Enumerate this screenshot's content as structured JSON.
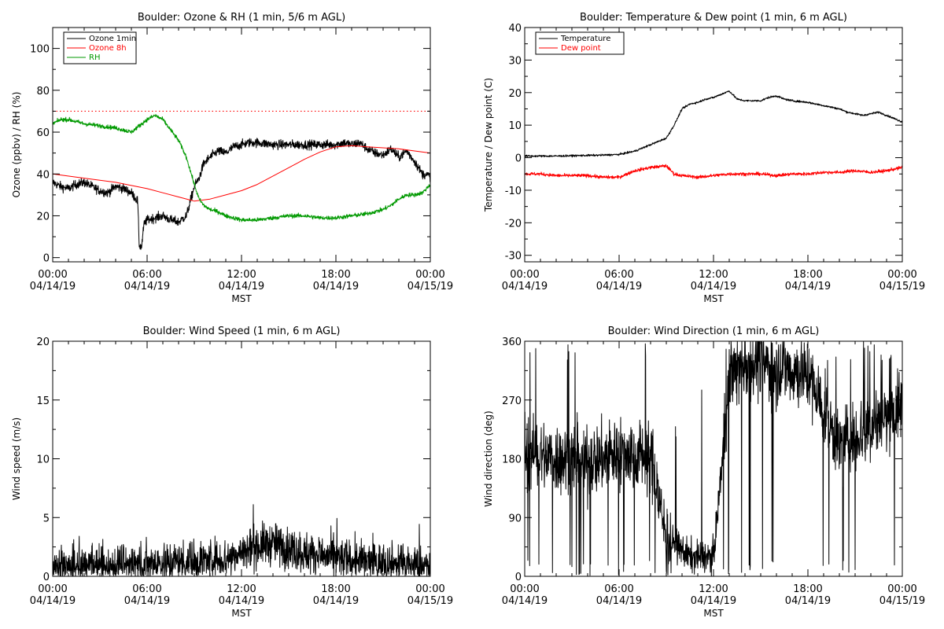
{
  "chart_data": [
    {
      "type": "line",
      "title": "Boulder: Ozone & RH (1 min, 5/6 m AGL)",
      "xlabel": "MST",
      "ylabel": "Ozone (ppbv) / RH (%)",
      "xlim_hours": [
        0,
        24
      ],
      "ylim": [
        -2,
        110
      ],
      "x_ticks": [
        {
          "time": "00:00",
          "date": "04/14/19",
          "hour": 0
        },
        {
          "time": "06:00",
          "date": "04/14/19",
          "hour": 6
        },
        {
          "time": "12:00",
          "date": "04/14/19",
          "hour": 12
        },
        {
          "time": "18:00",
          "date": "04/14/19",
          "hour": 18
        },
        {
          "time": "00:00",
          "date": "04/15/19",
          "hour": 24
        }
      ],
      "y_ticks": [
        0,
        20,
        40,
        60,
        80,
        100
      ],
      "legend": "top-left",
      "series": [
        {
          "name": "Ozone 1min",
          "color": "#000000",
          "noise": 2.2,
          "x": [
            0,
            0.5,
            1,
            1.5,
            2,
            2.5,
            3,
            3.5,
            4,
            4.5,
            5,
            5.4,
            5.5,
            5.65,
            5.8,
            6,
            6.5,
            7,
            7.5,
            8,
            8.5,
            9,
            9.3,
            9.6,
            10,
            10.5,
            11,
            11.5,
            12,
            12.5,
            13,
            14,
            15,
            16,
            17,
            18,
            18.5,
            19,
            19.5,
            20,
            20.5,
            21,
            21.5,
            22,
            22.5,
            23,
            23.5,
            24
          ],
          "y": [
            36,
            34,
            33,
            35,
            36,
            34,
            32,
            31,
            34,
            33,
            31,
            27,
            6,
            5,
            16,
            18,
            19,
            20,
            18,
            17,
            20,
            34,
            38,
            45,
            48,
            51,
            50,
            53,
            54,
            55,
            55,
            54,
            54,
            54,
            54,
            54,
            55,
            54,
            55,
            52,
            50,
            49,
            52,
            48,
            51,
            46,
            40,
            39
          ]
        },
        {
          "name": "Ozone 8h",
          "color": "#ff0000",
          "noise": 0,
          "x": [
            0,
            2,
            4,
            6,
            7,
            8,
            9,
            10,
            11,
            12,
            13,
            14,
            15,
            16,
            17,
            18,
            19,
            20,
            21,
            22,
            23,
            24
          ],
          "y": [
            40,
            38,
            36,
            33,
            31,
            29,
            27,
            28,
            30,
            32,
            35,
            39,
            43,
            47,
            50.5,
            53,
            53.5,
            53,
            52.5,
            52,
            51,
            50
          ]
        },
        {
          "name": "RH",
          "color": "#009900",
          "noise": 1.0,
          "x": [
            0,
            0.5,
            1,
            2,
            3,
            4,
            5,
            5.5,
            6,
            6.5,
            7,
            7.5,
            8,
            8.5,
            9,
            9.3,
            9.6,
            10,
            10.5,
            11,
            12,
            13,
            14,
            15,
            16,
            17,
            18,
            19,
            20,
            21,
            21.5,
            22,
            22.5,
            23,
            23.5,
            24
          ],
          "y": [
            64,
            66,
            66,
            64,
            63,
            62,
            60,
            63,
            66,
            68,
            66,
            61,
            56,
            48,
            35,
            28,
            25,
            23,
            22,
            20,
            18,
            18,
            19,
            20,
            20,
            19,
            19,
            20,
            21,
            23,
            25,
            28,
            30,
            30,
            31,
            35
          ]
        },
        {
          "name": "",
          "color": "#ff0000",
          "style": "dotted",
          "x": [
            0,
            24
          ],
          "y": [
            70,
            70
          ]
        }
      ]
    },
    {
      "type": "line",
      "title": "Boulder: Temperature & Dew point (1 min, 6 m AGL)",
      "xlabel": "MST",
      "ylabel": "Temperature / Dew point (C)",
      "xlim_hours": [
        0,
        24
      ],
      "ylim": [
        -32,
        40
      ],
      "x_ticks": [
        {
          "time": "00:00",
          "date": "04/14/19",
          "hour": 0
        },
        {
          "time": "06:00",
          "date": "04/14/19",
          "hour": 6
        },
        {
          "time": "12:00",
          "date": "04/14/19",
          "hour": 12
        },
        {
          "time": "18:00",
          "date": "04/14/19",
          "hour": 18
        },
        {
          "time": "00:00",
          "date": "04/15/19",
          "hour": 24
        }
      ],
      "y_ticks": [
        -30,
        -20,
        -10,
        0,
        10,
        20,
        30,
        40
      ],
      "legend": "top-left",
      "series": [
        {
          "name": "Temperature",
          "color": "#000000",
          "noise": 0.3,
          "x": [
            0,
            1,
            2,
            3,
            4,
            5,
            6,
            6.5,
            7,
            7.5,
            8,
            8.5,
            9,
            9.5,
            10,
            10.5,
            11,
            11.5,
            12,
            12.5,
            13,
            13.5,
            14,
            14.5,
            15,
            15.5,
            16,
            16.5,
            17,
            18,
            19,
            20,
            20.5,
            21,
            21.5,
            22,
            22.5,
            23,
            23.5,
            24
          ],
          "y": [
            0.5,
            0.5,
            0.5,
            0.6,
            0.7,
            0.8,
            1,
            1.5,
            2,
            3,
            4,
            5,
            6,
            10,
            15,
            16.5,
            17,
            18,
            18.5,
            19.5,
            20.5,
            18,
            17.5,
            17.5,
            17.5,
            18.5,
            19,
            18,
            17.5,
            17,
            16,
            15,
            14,
            13.5,
            13,
            13.5,
            14,
            13,
            12,
            11
          ]
        },
        {
          "name": "Dew point",
          "color": "#ff0000",
          "noise": 0.5,
          "x": [
            0,
            1,
            2,
            3,
            4,
            5,
            6,
            7,
            8,
            9,
            9.5,
            10,
            11,
            12,
            13,
            14,
            15,
            16,
            17,
            18,
            19,
            20,
            21,
            22,
            23,
            24
          ],
          "y": [
            -5,
            -5,
            -5.5,
            -5.5,
            -5.5,
            -6,
            -6,
            -4,
            -3,
            -2.5,
            -5,
            -5.5,
            -6,
            -5.5,
            -5,
            -5,
            -5,
            -5.5,
            -5,
            -5,
            -4.5,
            -4.5,
            -4,
            -4.5,
            -4,
            -3
          ]
        }
      ]
    },
    {
      "type": "line",
      "title": "Boulder: Wind Speed (1 min, 6 m AGL)",
      "xlabel": "MST",
      "ylabel": "Wind speed (m/s)",
      "xlim_hours": [
        0,
        24
      ],
      "ylim": [
        0,
        20
      ],
      "x_ticks": [
        {
          "time": "00:00",
          "date": "04/14/19",
          "hour": 0
        },
        {
          "time": "06:00",
          "date": "04/14/19",
          "hour": 6
        },
        {
          "time": "12:00",
          "date": "04/14/19",
          "hour": 12
        },
        {
          "time": "18:00",
          "date": "04/14/19",
          "hour": 18
        },
        {
          "time": "00:00",
          "date": "04/15/19",
          "hour": 24
        }
      ],
      "y_ticks": [
        0,
        5,
        10,
        15,
        20
      ],
      "series": [
        {
          "name": "",
          "color": "#000000",
          "noise": 1.8,
          "floor": 0,
          "x": [
            0,
            3,
            6,
            9,
            11,
            12,
            13,
            14,
            15,
            16,
            17,
            18,
            20,
            22,
            24
          ],
          "y": [
            0.6,
            0.9,
            1.1,
            1.3,
            1.5,
            2.0,
            2.6,
            2.8,
            2.4,
            2.0,
            1.8,
            1.5,
            1.2,
            1.0,
            0.8
          ]
        }
      ]
    },
    {
      "type": "line",
      "title": "Boulder: Wind Direction (1 min, 6 m AGL)",
      "xlabel": "MST",
      "ylabel": "Wind direction (deg)",
      "xlim_hours": [
        0,
        24
      ],
      "ylim": [
        0,
        360
      ],
      "x_ticks": [
        {
          "time": "00:00",
          "date": "04/14/19",
          "hour": 0
        },
        {
          "time": "06:00",
          "date": "04/14/19",
          "hour": 6
        },
        {
          "time": "12:00",
          "date": "04/14/19",
          "hour": 12
        },
        {
          "time": "18:00",
          "date": "04/14/19",
          "hour": 18
        },
        {
          "time": "00:00",
          "date": "04/15/19",
          "hour": 24
        }
      ],
      "y_ticks": [
        0,
        90,
        180,
        270,
        360
      ],
      "series": [
        {
          "name": "",
          "color": "#000000",
          "style": "wrap",
          "x": [
            0,
            2,
            4,
            6,
            8,
            9,
            10.5,
            12,
            13,
            14,
            16,
            18,
            20,
            22,
            24
          ],
          "y": [
            190,
            180,
            175,
            190,
            185,
            60,
            30,
            30,
            300,
            330,
            320,
            310,
            200,
            230,
            260
          ]
        }
      ]
    }
  ]
}
